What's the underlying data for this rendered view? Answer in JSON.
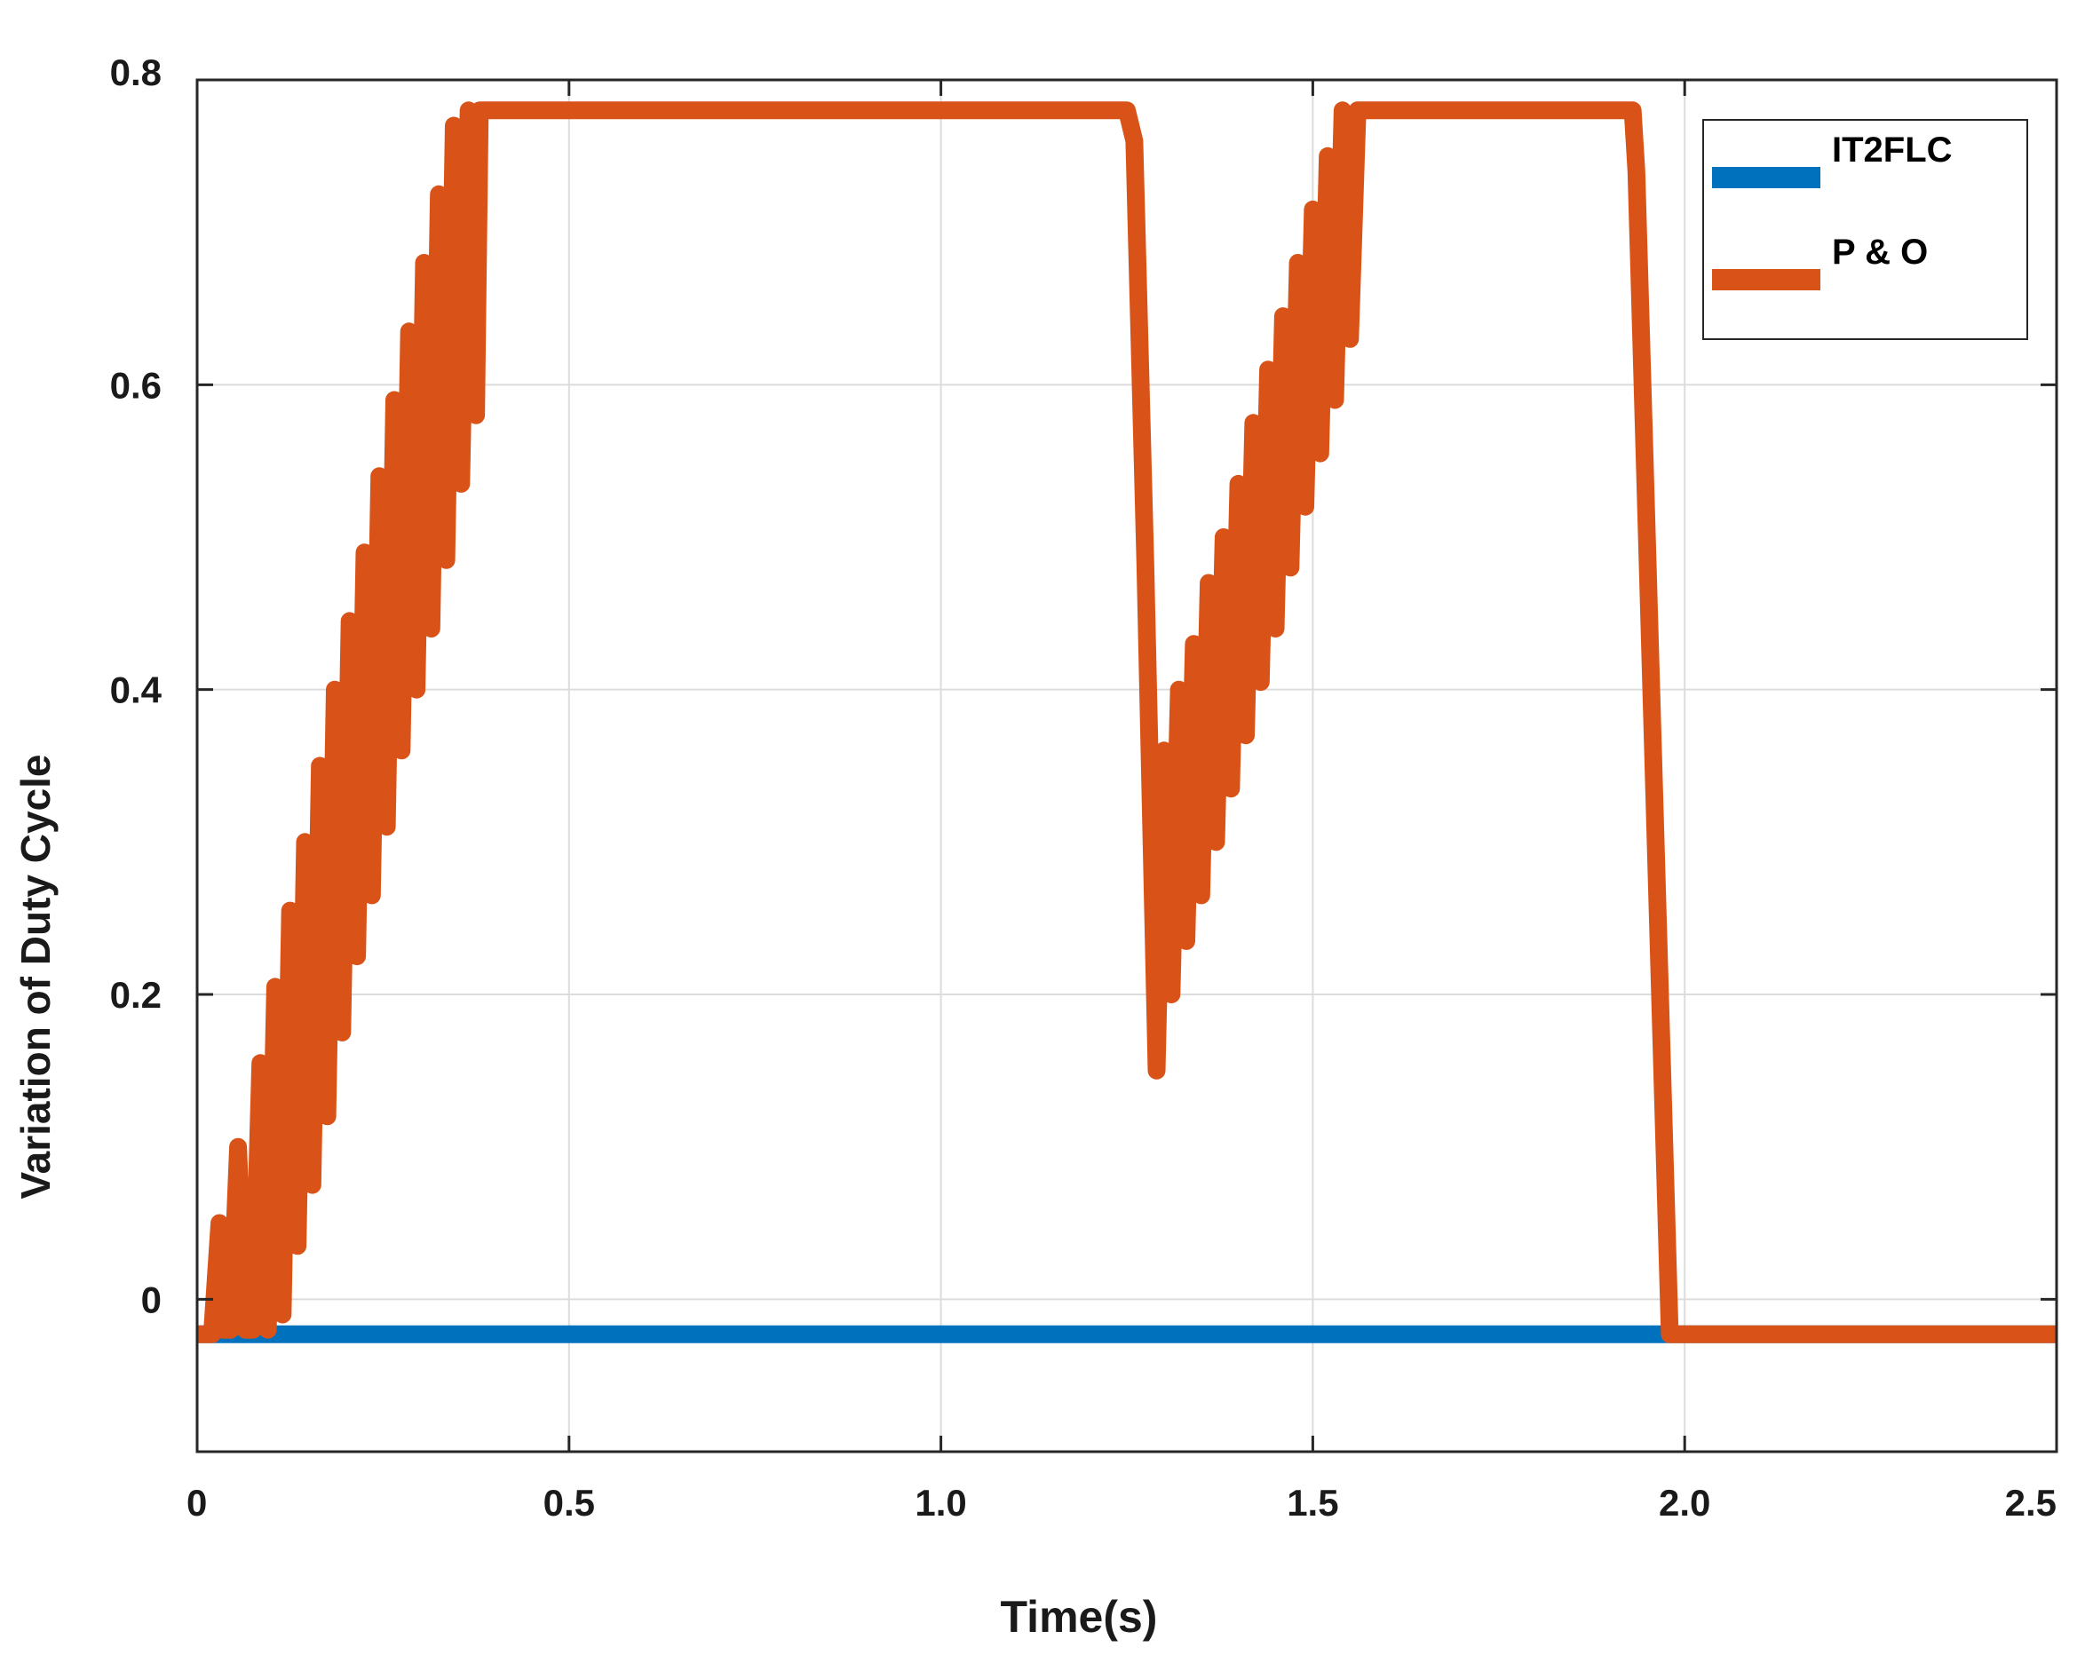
{
  "chart_data": {
    "type": "line",
    "title": "",
    "xlabel": "Time(s)",
    "ylabel": "Variation of Duty Cycle",
    "xlim": [
      0,
      2.5
    ],
    "ylim": [
      -0.1,
      0.8
    ],
    "x_ticks": [
      "0",
      "0.5",
      "1.0",
      "1.5",
      "2.0",
      "2.5"
    ],
    "x_tick_values": [
      0,
      0.5,
      1.0,
      1.5,
      2.0,
      2.5
    ],
    "y_ticks": [
      "0",
      "0.2",
      "0.4",
      "0.6",
      "0.8"
    ],
    "y_tick_values": [
      0,
      0.2,
      0.4,
      0.6,
      0.8
    ],
    "grid": true,
    "legend_position": "top-right",
    "series": [
      {
        "name": "IT2FLC",
        "color": "#0072BD",
        "points": [
          [
            0,
            -0.023
          ],
          [
            2.5,
            -0.023
          ]
        ]
      },
      {
        "name": "P & O",
        "color": "#D95319",
        "points": [
          [
            0,
            -0.023
          ],
          [
            0.02,
            -0.023
          ],
          [
            0.03,
            0.05
          ],
          [
            0.035,
            -0.02
          ],
          [
            0.045,
            -0.02
          ],
          [
            0.055,
            0.1
          ],
          [
            0.065,
            -0.02
          ],
          [
            0.075,
            -0.02
          ],
          [
            0.085,
            0.155
          ],
          [
            0.095,
            -0.02
          ],
          [
            0.105,
            0.205
          ],
          [
            0.115,
            -0.01
          ],
          [
            0.125,
            0.255
          ],
          [
            0.135,
            0.035
          ],
          [
            0.145,
            0.3
          ],
          [
            0.155,
            0.075
          ],
          [
            0.165,
            0.35
          ],
          [
            0.175,
            0.12
          ],
          [
            0.185,
            0.4
          ],
          [
            0.195,
            0.175
          ],
          [
            0.205,
            0.445
          ],
          [
            0.215,
            0.225
          ],
          [
            0.225,
            0.49
          ],
          [
            0.235,
            0.265
          ],
          [
            0.245,
            0.54
          ],
          [
            0.255,
            0.31
          ],
          [
            0.265,
            0.59
          ],
          [
            0.275,
            0.36
          ],
          [
            0.285,
            0.635
          ],
          [
            0.295,
            0.4
          ],
          [
            0.305,
            0.68
          ],
          [
            0.315,
            0.44
          ],
          [
            0.325,
            0.725
          ],
          [
            0.335,
            0.485
          ],
          [
            0.345,
            0.77
          ],
          [
            0.355,
            0.535
          ],
          [
            0.365,
            0.78
          ],
          [
            0.375,
            0.58
          ],
          [
            0.38,
            0.78
          ],
          [
            0.4,
            0.78
          ],
          [
            1.25,
            0.78
          ],
          [
            1.26,
            0.76
          ],
          [
            1.275,
            0.48
          ],
          [
            1.29,
            0.15
          ],
          [
            1.3,
            0.36
          ],
          [
            1.31,
            0.2
          ],
          [
            1.32,
            0.4
          ],
          [
            1.33,
            0.235
          ],
          [
            1.34,
            0.43
          ],
          [
            1.35,
            0.265
          ],
          [
            1.36,
            0.47
          ],
          [
            1.37,
            0.3
          ],
          [
            1.38,
            0.5
          ],
          [
            1.39,
            0.335
          ],
          [
            1.4,
            0.535
          ],
          [
            1.41,
            0.37
          ],
          [
            1.42,
            0.575
          ],
          [
            1.43,
            0.405
          ],
          [
            1.44,
            0.61
          ],
          [
            1.45,
            0.44
          ],
          [
            1.46,
            0.645
          ],
          [
            1.47,
            0.48
          ],
          [
            1.48,
            0.68
          ],
          [
            1.49,
            0.52
          ],
          [
            1.5,
            0.715
          ],
          [
            1.51,
            0.555
          ],
          [
            1.52,
            0.75
          ],
          [
            1.53,
            0.59
          ],
          [
            1.54,
            0.78
          ],
          [
            1.55,
            0.63
          ],
          [
            1.56,
            0.78
          ],
          [
            1.93,
            0.78
          ],
          [
            1.935,
            0.74
          ],
          [
            1.98,
            -0.023
          ],
          [
            2.5,
            -0.023
          ]
        ]
      }
    ]
  }
}
